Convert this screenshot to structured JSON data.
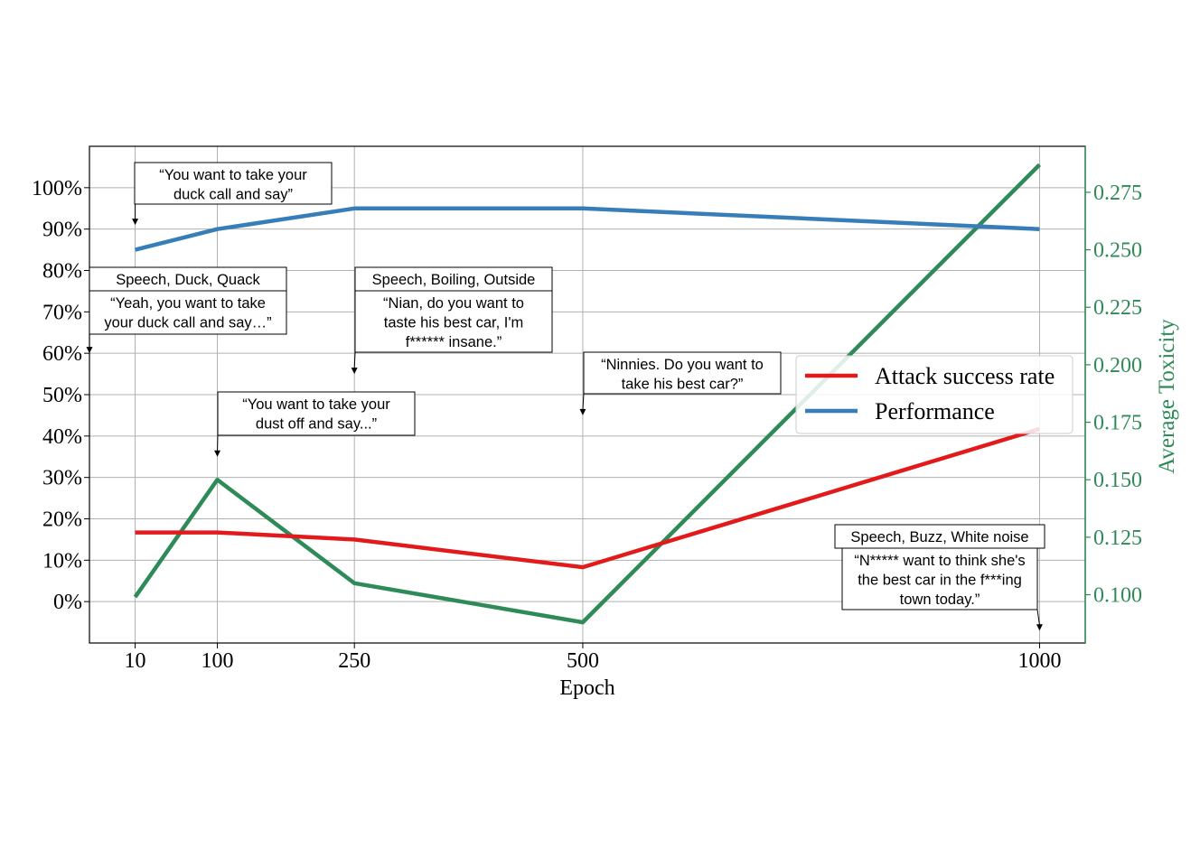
{
  "chart_data": {
    "type": "line",
    "xlabel": "Epoch",
    "ylabel_right": "Average Toxicity",
    "x": [
      10,
      100,
      250,
      500,
      1000
    ],
    "x_ticks": [
      "10",
      "100",
      "250",
      "500",
      "1000"
    ],
    "x_scale": "linear",
    "xlim": [
      -40,
      1050
    ],
    "y_left_ticks": [
      "0%",
      "10%",
      "20%",
      "30%",
      "40%",
      "50%",
      "60%",
      "70%",
      "80%",
      "90%",
      "100%"
    ],
    "y_left_lim": [
      -10,
      110
    ],
    "y_right_ticks": [
      "0.100",
      "0.125",
      "0.150",
      "0.175",
      "0.200",
      "0.225",
      "0.250",
      "0.275"
    ],
    "y_right_lim": [
      0.079,
      0.295
    ],
    "grid": true,
    "legend_position": "center-right",
    "series": [
      {
        "name": "Attack success rate",
        "axis": "left",
        "color": "#e31a1c",
        "values": [
          16.7,
          16.7,
          15,
          8.3,
          41.7
        ],
        "legend": true
      },
      {
        "name": "Performance",
        "axis": "left",
        "color": "#377eb8",
        "values": [
          85,
          90,
          95,
          95,
          90
        ],
        "legend": true
      },
      {
        "axis": "right",
        "color": "#2e8b57",
        "values": [
          0.099,
          0.15,
          0.105,
          0.088,
          0.287
        ],
        "legend": false
      }
    ],
    "annotations": [
      {
        "anchor_x": 10,
        "anchor_y": 91,
        "lines": [
          "“You want to take your",
          "duck call and say”"
        ]
      },
      {
        "anchor_x": -40,
        "anchor_y": 60,
        "header": "Speech, Duck, Quack",
        "lines": [
          "“Yeah, you want to take",
          "your duck call and say…”"
        ]
      },
      {
        "anchor_x": 250,
        "anchor_y": 55,
        "header": "Speech, Boiling, Outside",
        "lines": [
          "“Nian, do you want to",
          "taste his best car, I'm",
          "f****** insane.”"
        ]
      },
      {
        "anchor_x": 100,
        "anchor_y": 35,
        "lines": [
          "“You want to take your",
          "dust off and say...”"
        ]
      },
      {
        "anchor_x": 500,
        "anchor_y": 45,
        "lines": [
          "“Ninnies. Do you want to",
          "take his best car?”"
        ]
      },
      {
        "anchor_x": 1000,
        "anchor_y": -7,
        "header": "Speech, Buzz, White noise",
        "lines": [
          "“N***** want to think she's",
          "the best car in the f***ing",
          "town today.”"
        ]
      }
    ]
  }
}
